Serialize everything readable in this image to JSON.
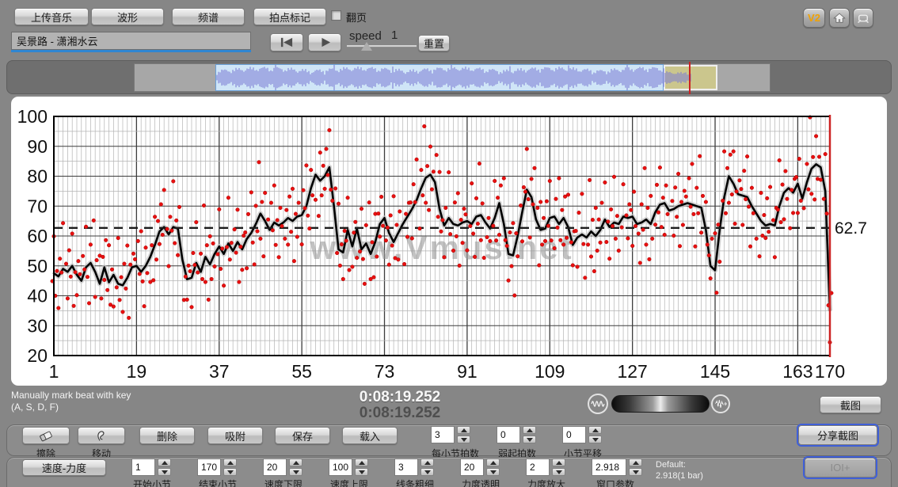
{
  "toolbar": {
    "upload_label": "上传音乐",
    "waveform_label": "波形",
    "spectrum_label": "频谱",
    "beat_mark_label": "拍点标记",
    "page_turn_label": "翻页",
    "v2_label": "V2",
    "track_title": "吴景路 - 潇湘水云",
    "speed_label": "speed",
    "speed_value": "1",
    "reset_label": "重置"
  },
  "status_bar": {
    "hint_line1": "Manually mark beat with key",
    "hint_line2": "(A, S, D, F)",
    "time_current": "0:08:19.252",
    "time_total": "0:08:19.252",
    "screenshot_label": "截图"
  },
  "controls": {
    "erase_label": "擦除",
    "move_label": "移动",
    "delete_label": "删除",
    "snap_label": "吸附",
    "save_label": "保存",
    "load_label": "载入",
    "beats_per_bar": {
      "value": "3",
      "label": "每小节拍数"
    },
    "pickup_beats": {
      "value": "0",
      "label": "弱起拍数"
    },
    "bar_shift": {
      "value": "0",
      "label": "小节平移"
    },
    "share_label": "分享截图",
    "tempo_dyn_label": "速度-力度",
    "start_bar": {
      "value": "1",
      "label": "开始小节"
    },
    "end_bar": {
      "value": "170",
      "label": "结束小节"
    },
    "tempo_min": {
      "value": "20",
      "label": "速度下限"
    },
    "tempo_max": {
      "value": "100",
      "label": "速度上限"
    },
    "line_width": {
      "value": "3",
      "label": "线条粗细"
    },
    "dyn_alpha": {
      "value": "20",
      "label": "力度透明"
    },
    "dyn_scale": {
      "value": "2",
      "label": "力度放大"
    },
    "window_param": {
      "value": "2.918",
      "label": "窗口参数"
    },
    "default_line1": "Default:",
    "default_line2": "2.918(1 bar)",
    "ioi_label": "IOI+"
  },
  "waveform": {
    "wave_color": "#7d7dd4",
    "selection_color": "#cfe5f7",
    "tail_color": "#cbc68d",
    "cursor_color": "#cc2222"
  },
  "chart_data": {
    "type": "line",
    "title": "",
    "xlabel": "",
    "ylabel": "",
    "xlim": [
      1,
      170
    ],
    "ylim": [
      20,
      100
    ],
    "x_ticks": [
      1,
      19,
      37,
      55,
      73,
      91,
      109,
      127,
      145,
      163,
      170
    ],
    "y_ticks": [
      20,
      30,
      40,
      50,
      60,
      70,
      80,
      90,
      100
    ],
    "grid": "minor-per-bar-and-per-5",
    "mean_tempo": 62.7,
    "mean_label": "62.7",
    "watermark": "www.Vmus.net",
    "legend": [],
    "series": [
      {
        "name": "smoothed-tempo-curve",
        "color": "#000000",
        "values": [
          47.5,
          46.5,
          49,
          48,
          50,
          47,
          45,
          49.5,
          51,
          48,
          44,
          49.5,
          44.5,
          47,
          44,
          43.5,
          46,
          49.5,
          50,
          48,
          50,
          53,
          57,
          61.5,
          63,
          60.5,
          63,
          62.5,
          52,
          45.5,
          46,
          51,
          48,
          53,
          50.5,
          54,
          56.5,
          54,
          57.5,
          55,
          58,
          55.5,
          59,
          61,
          64,
          67.5,
          65,
          62,
          64.5,
          63.5,
          64.5,
          66,
          65,
          66.5,
          67,
          70,
          76,
          80.5,
          78.5,
          80,
          83,
          70,
          55.5,
          54.5,
          62,
          56.5,
          62.5,
          55.5,
          57.5,
          54,
          58,
          64,
          66,
          61,
          58,
          61,
          64,
          66.5,
          69,
          72,
          76,
          79.5,
          80.5,
          78,
          69,
          63.5,
          66,
          64,
          63.5,
          64.5,
          65,
          64,
          66.5,
          67,
          64.5,
          62.5,
          66,
          71,
          64,
          54,
          53.5,
          60,
          68,
          75.5,
          73,
          65.5,
          62,
          62.5,
          66,
          66.5,
          64,
          66,
          63,
          57,
          59.5,
          60.5,
          59.5,
          61.5,
          60,
          62,
          65.5,
          63,
          64.5,
          64,
          66.5,
          66,
          66.5,
          64,
          64.5,
          65.5,
          64,
          68,
          70.5,
          71,
          68.5,
          69,
          70,
          70.5,
          71,
          70.5,
          70,
          69.5,
          62,
          50,
          48.5,
          62,
          73,
          80,
          77.5,
          74,
          73.5,
          73,
          70,
          67.5,
          65,
          63.5,
          64,
          63.5,
          70,
          74.5,
          76,
          74.5,
          77.5,
          72.5,
          78,
          82.5,
          84,
          83,
          75,
          35
        ]
      }
    ],
    "scatter": {
      "name": "per-beat-tempo-dots",
      "color": "#e81010",
      "beats_per_bar": 3,
      "offsets": [
        3.5,
        -4.2,
        9.1,
        -2.6,
        12.4,
        -7.5,
        1.8,
        -10.6,
        5.9,
        -1.2,
        15.3,
        -5.4,
        2.7,
        -8.9,
        7.2,
        -3.6,
        10.8,
        -13.4,
        0.9,
        -6.8,
        4.6,
        2.2,
        -9.8,
        8.3,
        -0.7,
        13.6,
        -3.2,
        -15.8,
        6.1,
        -2.4,
        17.2,
        -8.4,
        3.9,
        -11.8,
        9.4,
        -4.9
      ],
      "skip_mods": [
        11,
        29
      ]
    },
    "colors": {
      "mean_line": "#1c1c1c",
      "right_cursor": "#cc2222",
      "halo": "#c4c4c4"
    }
  }
}
